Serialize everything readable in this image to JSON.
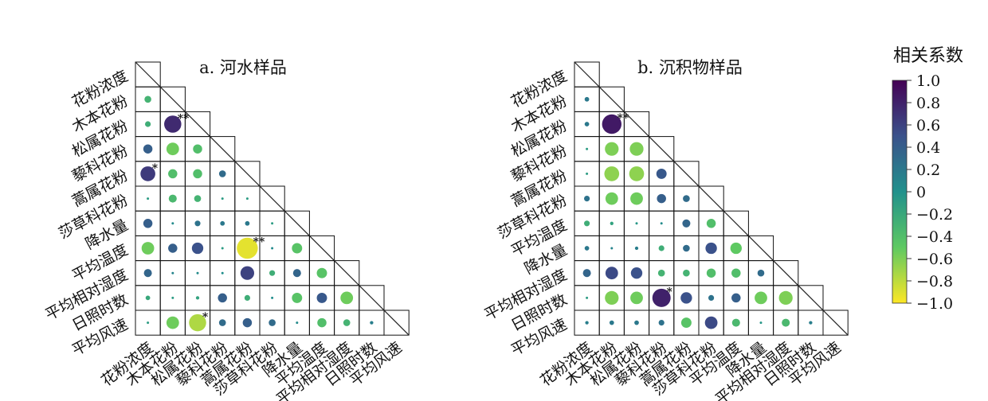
{
  "colorbar": {
    "title": "相关系数",
    "ticks": [
      "1.0",
      "0.8",
      "0.6",
      "0.4",
      "0.2",
      "0",
      "−0.2",
      "−0.4",
      "−0.6",
      "−0.8",
      "−1.0"
    ],
    "colormap": "viridis",
    "range": [
      -1.0,
      1.0
    ]
  },
  "chart_data": [
    {
      "type": "heatmap",
      "title": "a. 河水样品",
      "ylabels": [
        "花粉浓度",
        "木本花粉",
        "松属花粉",
        "藜科花粉",
        "蒿属花粉",
        "莎草科花粉",
        "降水量",
        "平均温度",
        "平均相对湿度",
        "日照时数",
        "平均风速"
      ],
      "xlabels": [
        "花粉浓度",
        "木本花粉",
        "松属花粉",
        "藜科花粉",
        "蒿属花粉",
        "莎草科花粉",
        "降水量",
        "平均温度",
        "平均相对湿度",
        "日照时数",
        "平均风速"
      ],
      "cells": [
        {
          "r": 1,
          "c": 0,
          "v": -0.3
        },
        {
          "r": 2,
          "c": 0,
          "v": -0.25
        },
        {
          "r": 2,
          "c": 1,
          "v": 0.75,
          "sig": "**"
        },
        {
          "r": 3,
          "c": 0,
          "v": 0.4
        },
        {
          "r": 3,
          "c": 1,
          "v": -0.55
        },
        {
          "r": 3,
          "c": 2,
          "v": -0.4
        },
        {
          "r": 4,
          "c": 0,
          "v": 0.65,
          "sig": "*"
        },
        {
          "r": 4,
          "c": 1,
          "v": -0.4
        },
        {
          "r": 4,
          "c": 2,
          "v": -0.4
        },
        {
          "r": 4,
          "c": 3,
          "v": 0.3
        },
        {
          "r": 5,
          "c": 0,
          "v": -0.1
        },
        {
          "r": 5,
          "c": 1,
          "v": -0.35
        },
        {
          "r": 5,
          "c": 2,
          "v": -0.3
        },
        {
          "r": 5,
          "c": 3,
          "v": -0.1
        },
        {
          "r": 5,
          "c": 4,
          "v": -0.1
        },
        {
          "r": 6,
          "c": 0,
          "v": 0.4
        },
        {
          "r": 6,
          "c": 1,
          "v": 0.05
        },
        {
          "r": 6,
          "c": 2,
          "v": 0.25
        },
        {
          "r": 6,
          "c": 3,
          "v": 0.2
        },
        {
          "r": 6,
          "c": 4,
          "v": 0.2
        },
        {
          "r": 6,
          "c": 5,
          "v": -0.1
        },
        {
          "r": 7,
          "c": 0,
          "v": -0.55
        },
        {
          "r": 7,
          "c": 1,
          "v": 0.4
        },
        {
          "r": 7,
          "c": 2,
          "v": 0.5
        },
        {
          "r": 7,
          "c": 3,
          "v": -0.1
        },
        {
          "r": 7,
          "c": 4,
          "v": -0.92,
          "sig": "**"
        },
        {
          "r": 7,
          "c": 5,
          "v": 0.05
        },
        {
          "r": 7,
          "c": 6,
          "v": -0.45
        },
        {
          "r": 8,
          "c": 0,
          "v": 0.35
        },
        {
          "r": 8,
          "c": 1,
          "v": 0.1
        },
        {
          "r": 8,
          "c": 2,
          "v": 0.05
        },
        {
          "r": 8,
          "c": 3,
          "v": 0.02
        },
        {
          "r": 8,
          "c": 4,
          "v": 0.6
        },
        {
          "r": 8,
          "c": 5,
          "v": -0.25
        },
        {
          "r": 8,
          "c": 6,
          "v": 0.35
        },
        {
          "r": 8,
          "c": 7,
          "v": -0.45
        },
        {
          "r": 9,
          "c": 0,
          "v": -0.2
        },
        {
          "r": 9,
          "c": 1,
          "v": -0.1
        },
        {
          "r": 9,
          "c": 2,
          "v": -0.15
        },
        {
          "r": 9,
          "c": 3,
          "v": 0.4
        },
        {
          "r": 9,
          "c": 4,
          "v": -0.25
        },
        {
          "r": 9,
          "c": 5,
          "v": 0.02
        },
        {
          "r": 9,
          "c": 6,
          "v": -0.45
        },
        {
          "r": 9,
          "c": 7,
          "v": 0.45
        },
        {
          "r": 9,
          "c": 8,
          "v": -0.55
        },
        {
          "r": 10,
          "c": 0,
          "v": -0.1
        },
        {
          "r": 10,
          "c": 1,
          "v": -0.55
        },
        {
          "r": 10,
          "c": 2,
          "v": -0.75,
          "sig": "*"
        },
        {
          "r": 10,
          "c": 3,
          "v": 0.3
        },
        {
          "r": 10,
          "c": 4,
          "v": 0.4
        },
        {
          "r": 10,
          "c": 5,
          "v": 0.3
        },
        {
          "r": 10,
          "c": 6,
          "v": 0.05
        },
        {
          "r": 10,
          "c": 7,
          "v": -0.4
        },
        {
          "r": 10,
          "c": 8,
          "v": -0.3
        },
        {
          "r": 10,
          "c": 9,
          "v": 0.15
        }
      ]
    },
    {
      "type": "heatmap",
      "title": "b. 沉积物样品",
      "ylabels": [
        "花粉浓度",
        "木本花粉",
        "松属花粉",
        "藜科花粉",
        "蒿属花粉",
        "莎草科花粉",
        "平均温度",
        "降水量",
        "平均相对湿度",
        "日照时数",
        "平均风速"
      ],
      "xlabels": [
        "花粉浓度",
        "木本花粉",
        "松属花粉",
        "藜科花粉",
        "蒿属花粉",
        "莎草科花粉",
        "平均温度",
        "降水量",
        "平均相对湿度",
        "日照时数",
        "平均风速"
      ],
      "cells": [
        {
          "r": 1,
          "c": 0,
          "v": 0.2
        },
        {
          "r": 2,
          "c": 0,
          "v": 0.2
        },
        {
          "r": 2,
          "c": 1,
          "v": 0.85,
          "sig": "**"
        },
        {
          "r": 3,
          "c": 0,
          "v": -0.1
        },
        {
          "r": 3,
          "c": 1,
          "v": -0.6
        },
        {
          "r": 3,
          "c": 2,
          "v": -0.6
        },
        {
          "r": 4,
          "c": 0,
          "v": -0.1
        },
        {
          "r": 4,
          "c": 1,
          "v": -0.65
        },
        {
          "r": 4,
          "c": 2,
          "v": -0.65
        },
        {
          "r": 4,
          "c": 3,
          "v": 0.45
        },
        {
          "r": 5,
          "c": 0,
          "v": 0.25
        },
        {
          "r": 5,
          "c": 1,
          "v": -0.55
        },
        {
          "r": 5,
          "c": 2,
          "v": -0.55
        },
        {
          "r": 5,
          "c": 3,
          "v": 0.4
        },
        {
          "r": 5,
          "c": 4,
          "v": 0.3
        },
        {
          "r": 6,
          "c": 0,
          "v": -0.25
        },
        {
          "r": 6,
          "c": 1,
          "v": -0.15
        },
        {
          "r": 6,
          "c": 2,
          "v": -0.05
        },
        {
          "r": 6,
          "c": 3,
          "v": 0.05
        },
        {
          "r": 6,
          "c": 4,
          "v": 0.35
        },
        {
          "r": 6,
          "c": 5,
          "v": -0.4
        },
        {
          "r": 7,
          "c": 0,
          "v": 0.2
        },
        {
          "r": 7,
          "c": 1,
          "v": 0.1
        },
        {
          "r": 7,
          "c": 2,
          "v": 0.15
        },
        {
          "r": 7,
          "c": 3,
          "v": -0.25
        },
        {
          "r": 7,
          "c": 4,
          "v": 0.3
        },
        {
          "r": 7,
          "c": 5,
          "v": 0.5
        },
        {
          "r": 7,
          "c": 6,
          "v": -0.5
        },
        {
          "r": 8,
          "c": 0,
          "v": 0.35
        },
        {
          "r": 8,
          "c": 1,
          "v": 0.55
        },
        {
          "r": 8,
          "c": 2,
          "v": 0.5
        },
        {
          "r": 8,
          "c": 3,
          "v": -0.3
        },
        {
          "r": 8,
          "c": 4,
          "v": -0.3
        },
        {
          "r": 8,
          "c": 5,
          "v": -0.4
        },
        {
          "r": 8,
          "c": 6,
          "v": -0.4
        },
        {
          "r": 8,
          "c": 7,
          "v": 0.3
        },
        {
          "r": 9,
          "c": 0,
          "v": -0.1
        },
        {
          "r": 9,
          "c": 1,
          "v": -0.6
        },
        {
          "r": 9,
          "c": 2,
          "v": -0.55
        },
        {
          "r": 9,
          "c": 3,
          "v": 0.8,
          "sig": "*"
        },
        {
          "r": 9,
          "c": 4,
          "v": 0.5
        },
        {
          "r": 9,
          "c": 5,
          "v": 0.25
        },
        {
          "r": 9,
          "c": 6,
          "v": 0.4
        },
        {
          "r": 9,
          "c": 7,
          "v": -0.55
        },
        {
          "r": 9,
          "c": 8,
          "v": -0.6
        },
        {
          "r": 10,
          "c": 0,
          "v": 0.15
        },
        {
          "r": 10,
          "c": 1,
          "v": 0.2
        },
        {
          "r": 10,
          "c": 2,
          "v": 0.2
        },
        {
          "r": 10,
          "c": 3,
          "v": 0.25
        },
        {
          "r": 10,
          "c": 4,
          "v": -0.45
        },
        {
          "r": 10,
          "c": 5,
          "v": 0.55
        },
        {
          "r": 10,
          "c": 6,
          "v": -0.35
        },
        {
          "r": 10,
          "c": 7,
          "v": -0.05
        },
        {
          "r": 10,
          "c": 8,
          "v": -0.35
        },
        {
          "r": 10,
          "c": 9,
          "v": 0.15
        }
      ]
    }
  ]
}
